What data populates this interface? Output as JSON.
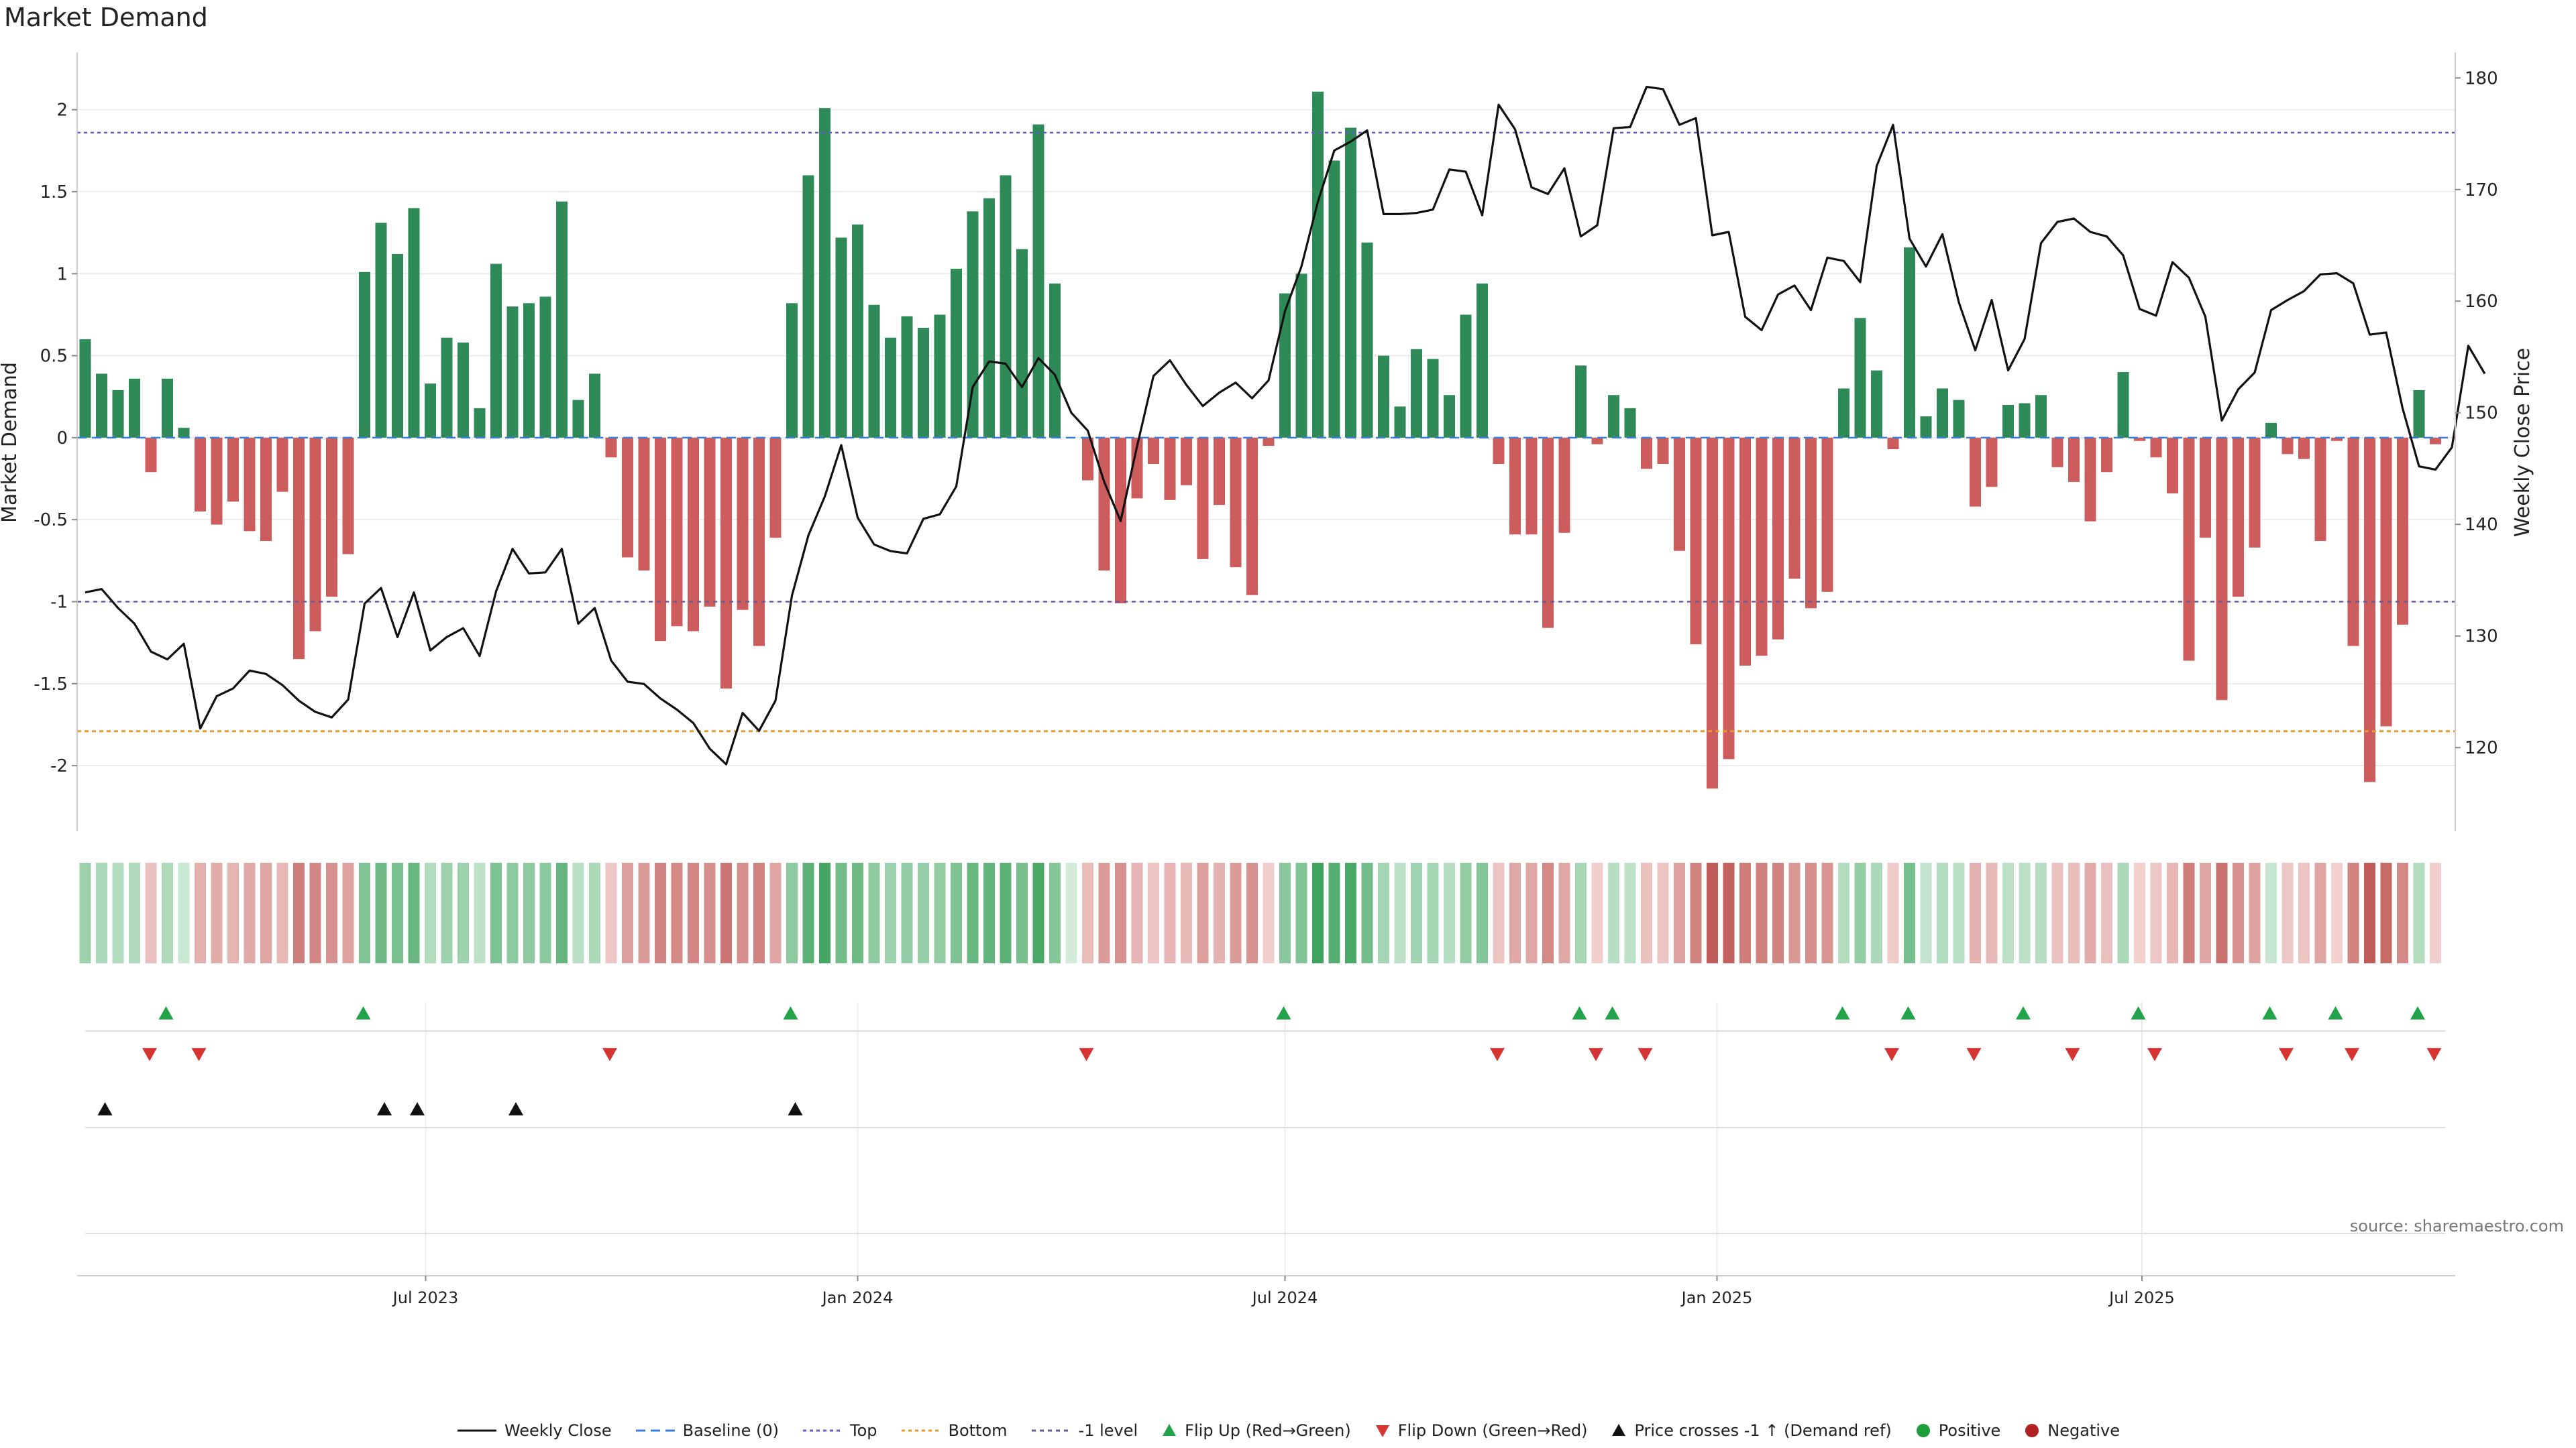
{
  "chart_data": {
    "type": "bar",
    "title": "Market Demand",
    "ylabel": "Market Demand",
    "y2label": "Weekly Close Price",
    "ylim": [
      -2.4,
      2.35
    ],
    "y2lim": [
      112.5,
      182.3
    ],
    "yticks": [
      "2",
      "1.5",
      "1",
      "0.5",
      "0",
      "-0.5",
      "-1",
      "-1.5",
      "-2"
    ],
    "y2ticks": [
      "180",
      "170",
      "160",
      "150",
      "140",
      "130",
      "120"
    ],
    "start_date": "2023-02-06",
    "end_date": "2025-11-17",
    "xticks": [
      {
        "date": "2023-07-01",
        "label": "Jul 2023"
      },
      {
        "date": "2024-01-01",
        "label": "Jan 2024"
      },
      {
        "date": "2024-07-01",
        "label": "Jul 2024"
      },
      {
        "date": "2025-01-01",
        "label": "Jan 2025"
      },
      {
        "date": "2025-07-01",
        "label": "Jul 2025"
      }
    ],
    "levels": {
      "top": 1.86,
      "bottom": -1.79,
      "minus_one": -1.0,
      "baseline": 0
    },
    "demand": [
      0.6,
      0.39,
      0.29,
      0.36,
      -0.21,
      0.36,
      0.06,
      -0.45,
      -0.53,
      -0.39,
      -0.57,
      -0.63,
      -0.33,
      -1.35,
      -1.18,
      -0.97,
      -0.71,
      1.01,
      1.31,
      1.12,
      1.4,
      0.33,
      0.61,
      0.58,
      0.18,
      1.06,
      0.8,
      0.82,
      0.86,
      1.44,
      0.23,
      0.39,
      -0.12,
      -0.73,
      -0.81,
      -1.24,
      -1.15,
      -1.18,
      -1.03,
      -1.53,
      -1.05,
      -1.27,
      -0.61,
      0.82,
      1.6,
      2.01,
      1.22,
      1.3,
      0.81,
      0.61,
      0.74,
      0.67,
      0.75,
      1.03,
      1.38,
      1.46,
      1.6,
      1.15,
      1.91,
      0.94,
      0,
      -0.26,
      -0.81,
      -1.01,
      -0.37,
      -0.16,
      -0.38,
      -0.29,
      -0.74,
      -0.41,
      -0.79,
      -0.96,
      -0.05,
      0.88,
      1.0,
      2.11,
      1.69,
      1.89,
      1.19,
      0.5,
      0.19,
      0.54,
      0.48,
      0.26,
      0.75,
      0.94,
      -0.16,
      -0.59,
      -0.59,
      -1.16,
      -0.58,
      0.44,
      -0.04,
      0.26,
      0.18,
      -0.19,
      -0.16,
      -0.69,
      -1.26,
      -2.14,
      -1.96,
      -1.39,
      -1.33,
      -1.23,
      -0.86,
      -1.04,
      -0.94,
      0.3,
      0.73,
      0.41,
      -0.07,
      1.16,
      0.13,
      0.3,
      0.23,
      -0.42,
      -0.3,
      0.2,
      0.21,
      0.26,
      -0.18,
      -0.27,
      -0.51,
      -0.21,
      0.4,
      -0.02,
      -0.12,
      -0.34,
      -1.36,
      -0.61,
      -1.6,
      -0.97,
      -0.67,
      0.09,
      -0.1,
      -0.13,
      -0.63,
      -0.02,
      -1.27,
      -2.1,
      -1.76,
      -1.14,
      0.29,
      -0.04
    ],
    "close": [
      133.9,
      134.2,
      132.5,
      131.1,
      128.6,
      127.9,
      129.3,
      121.7,
      124.6,
      125.3,
      126.9,
      126.6,
      125.6,
      124.2,
      123.2,
      122.7,
      124.3,
      132.9,
      134.3,
      129.9,
      133.9,
      128.7,
      129.9,
      130.7,
      128.2,
      134.0,
      137.8,
      135.6,
      135.7,
      137.8,
      131.1,
      132.5,
      127.8,
      125.9,
      125.7,
      124.4,
      123.4,
      122.2,
      119.9,
      118.5,
      123.1,
      121.5,
      124.2,
      133.6,
      139.0,
      142.5,
      147.1,
      140.6,
      138.2,
      137.6,
      137.4,
      140.5,
      140.9,
      143.4,
      152.3,
      154.6,
      154.4,
      152.3,
      154.9,
      153.4,
      150.0,
      148.4,
      143.8,
      140.3,
      147.0,
      153.3,
      154.7,
      152.5,
      150.6,
      151.8,
      152.7,
      151.3,
      152.9,
      159.1,
      163.1,
      168.9,
      173.5,
      174.3,
      175.3,
      167.8,
      167.8,
      167.9,
      168.2,
      171.8,
      171.6,
      167.7,
      177.6,
      175.4,
      170.2,
      169.6,
      171.9,
      165.8,
      166.8,
      175.5,
      175.6,
      179.2,
      179.0,
      175.8,
      176.4,
      165.9,
      166.2,
      158.6,
      157.4,
      160.6,
      161.4,
      159.2,
      163.9,
      163.6,
      161.7,
      172.1,
      175.8,
      165.6,
      163.1,
      166.0,
      159.9,
      155.6,
      160.1,
      153.8,
      156.6,
      165.2,
      167.1,
      167.4,
      166.2,
      165.8,
      164.1,
      159.3,
      158.7,
      163.5,
      162.1,
      158.6,
      149.3,
      152.1,
      153.6,
      159.2,
      160.1,
      160.9,
      162.4,
      162.5,
      161.6,
      157.0,
      157.2,
      150.4,
      145.2,
      144.9,
      146.9,
      156.0,
      153.5
    ],
    "flip_up": [
      5,
      17,
      43,
      73,
      91,
      93,
      107,
      111,
      118,
      125,
      133,
      137,
      142
    ],
    "flip_down": [
      4,
      7,
      32,
      61,
      86,
      92,
      95,
      110,
      115,
      121,
      126,
      134,
      138,
      143
    ],
    "price_cross": [
      1,
      18,
      20,
      26,
      43
    ],
    "source": "source: sharemaestro.com",
    "legend": [
      {
        "key": "close",
        "label": "Weekly Close"
      },
      {
        "key": "baseline",
        "label": "Baseline (0)"
      },
      {
        "key": "top",
        "label": "Top"
      },
      {
        "key": "bottom",
        "label": "Bottom"
      },
      {
        "key": "minus1",
        "label": "-1 level"
      },
      {
        "key": "flipup",
        "label": "Flip Up (Red→Green)"
      },
      {
        "key": "flipdown",
        "label": "Flip Down (Green→Red)"
      },
      {
        "key": "cross",
        "label": "Price crosses -1 ↑ (Demand ref)"
      },
      {
        "key": "pos",
        "label": "Positive"
      },
      {
        "key": "neg",
        "label": "Negative"
      }
    ],
    "colors": {
      "positive": "#2e8b57",
      "negative": "#cd5c5c",
      "close": "#111111",
      "baseline": "#3b7dd8",
      "top": "#6a5acd",
      "bottom": "#e69a2e",
      "minus1": "#6a5a9a",
      "flip_up": "#22a34a",
      "flip_down": "#d63333",
      "cross": "#111111",
      "pos_dot": "#1e9e3a",
      "neg_dot": "#b22222"
    }
  }
}
